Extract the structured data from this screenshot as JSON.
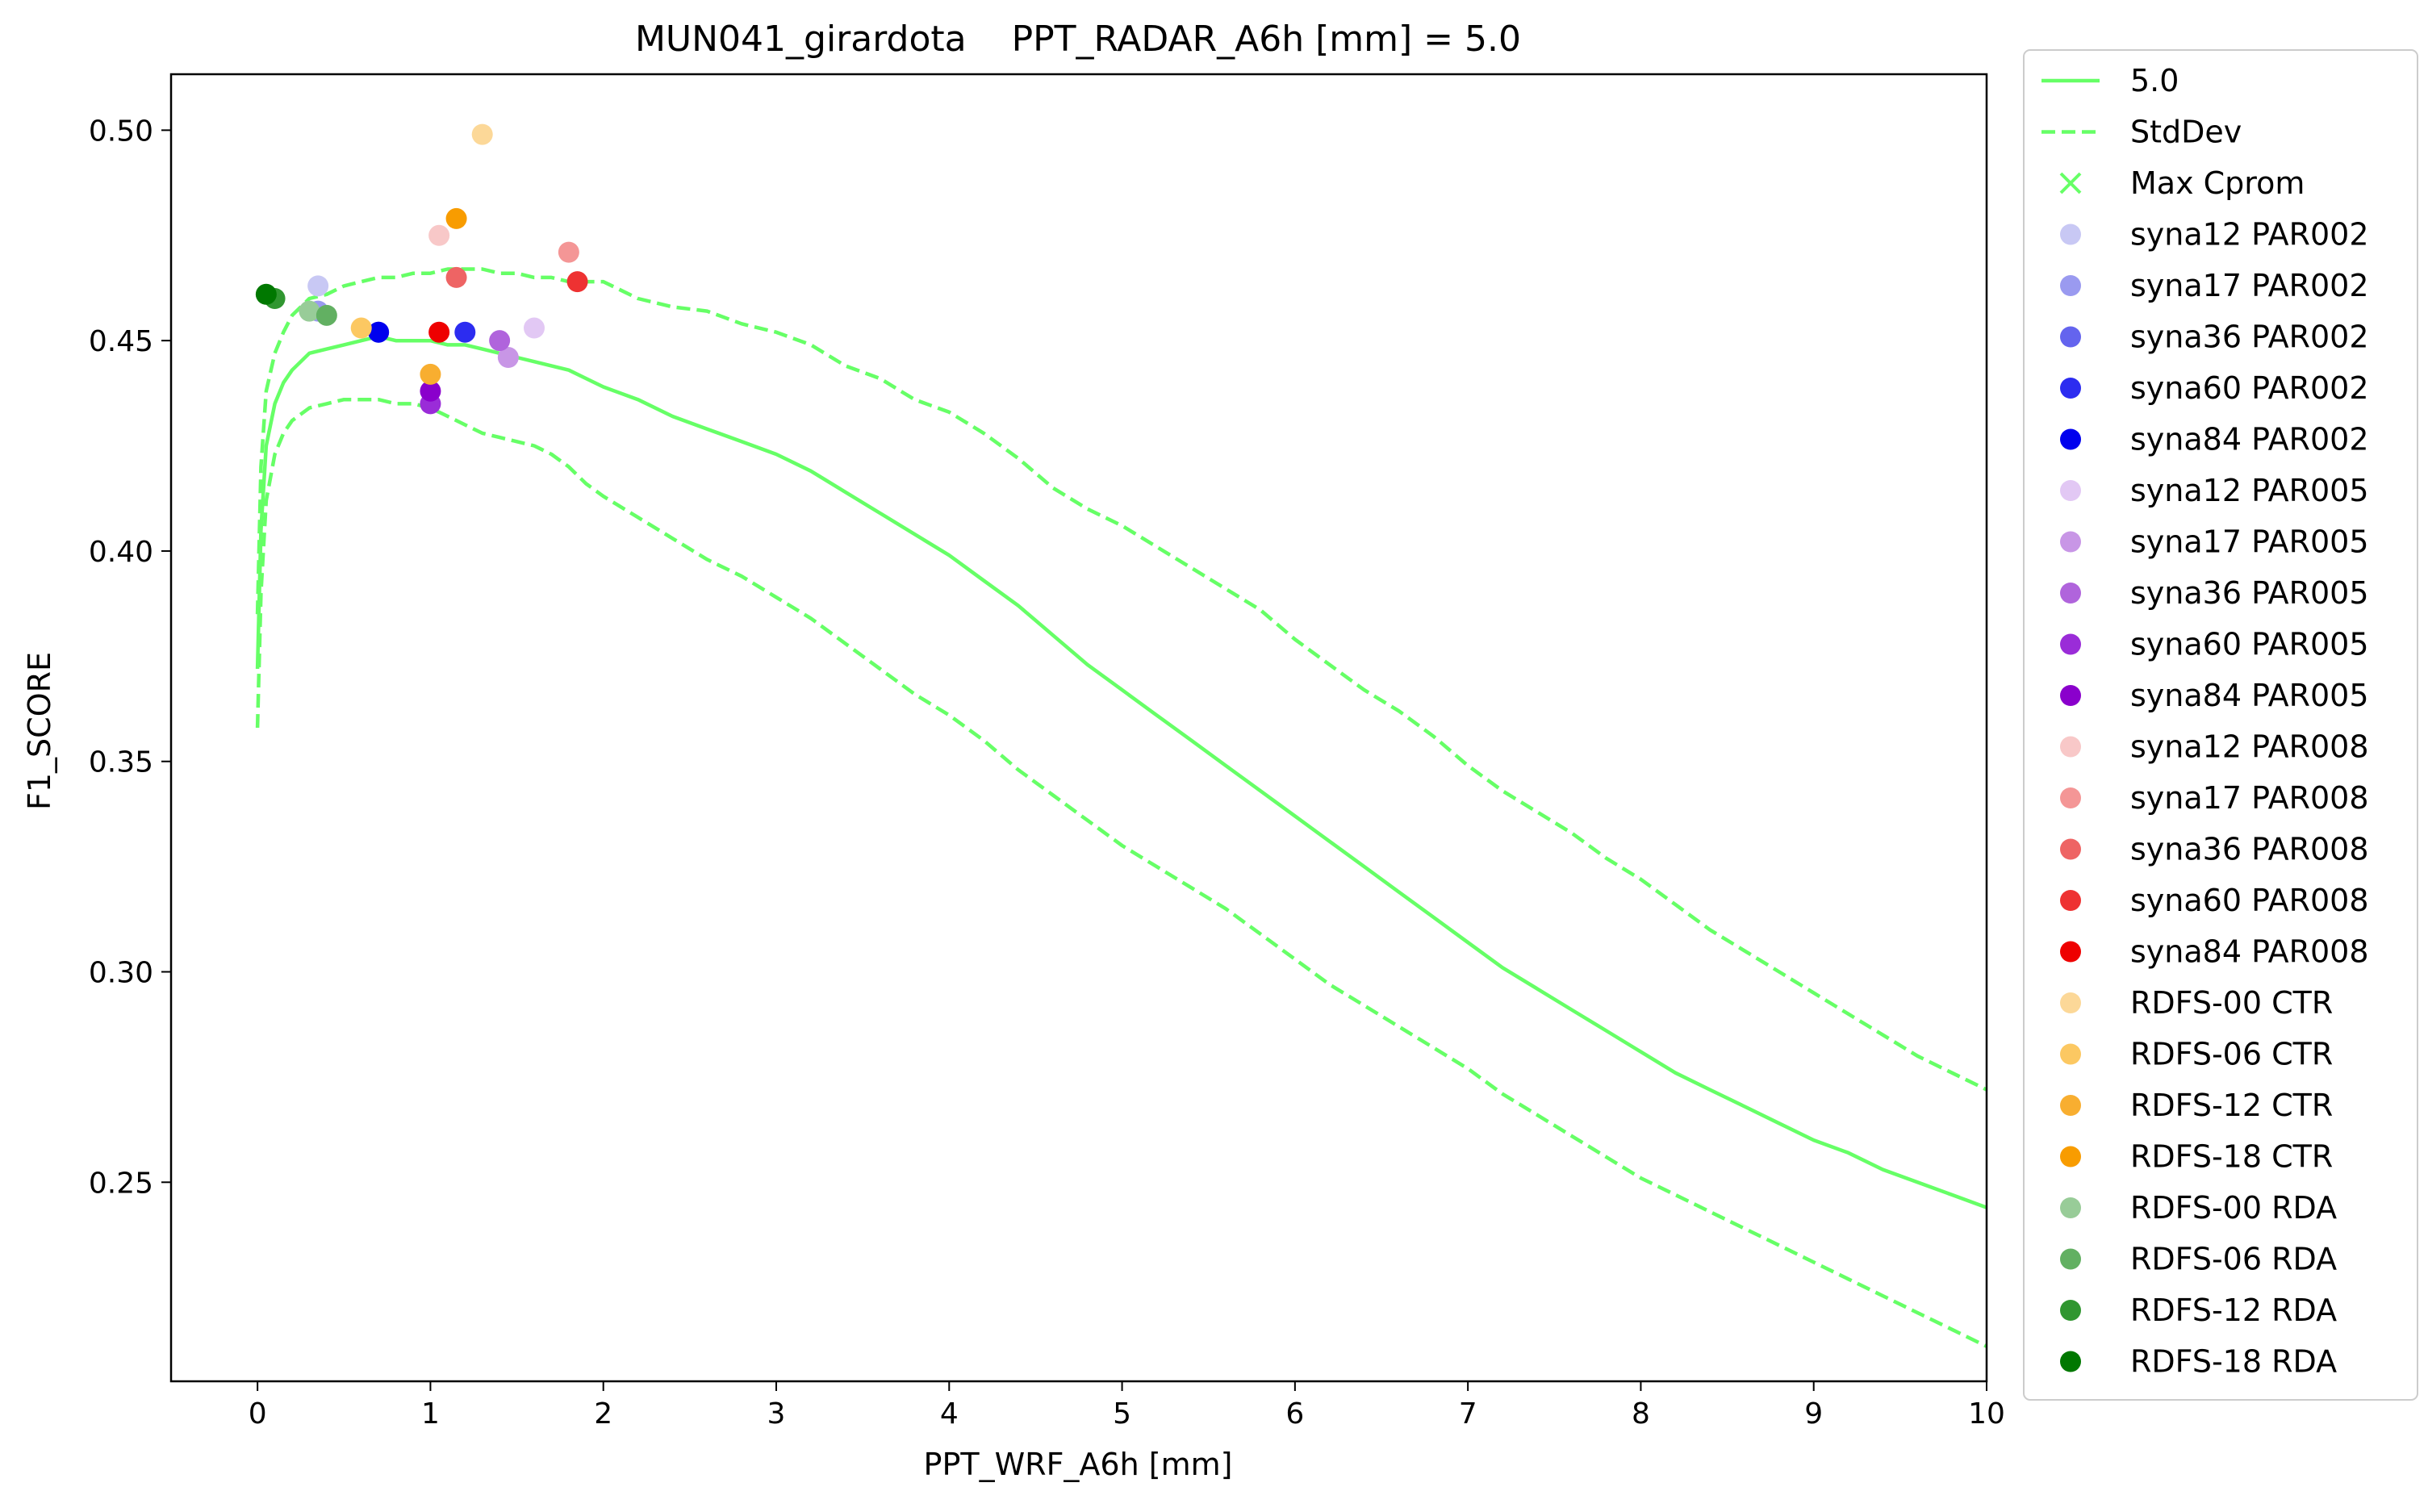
{
  "chart_data": {
    "type": "line",
    "title": "MUN041_girardota    PPT_RADAR_A6h [mm] = 5.0",
    "xlabel": "PPT_WRF_A6h [mm]",
    "ylabel": "F1_SCORE",
    "xlim": [
      -0.5,
      10
    ],
    "ylim": [
      0.2027,
      0.5133
    ],
    "xticks": [
      0,
      1,
      2,
      3,
      4,
      5,
      6,
      7,
      8,
      9,
      10
    ],
    "yticks": [
      0.25,
      0.3,
      0.35,
      0.4,
      0.45,
      0.5
    ],
    "xtick_labels": [
      "0",
      "1",
      "2",
      "3",
      "4",
      "5",
      "6",
      "7",
      "8",
      "9",
      "10"
    ],
    "ytick_labels": [
      "0.25",
      "0.30",
      "0.35",
      "0.40",
      "0.45",
      "0.50"
    ],
    "grid": false,
    "legend_position": "outside-right",
    "lines": [
      {
        "name": "5.0",
        "color": "#66ff66",
        "style": "solid",
        "x": [
          0,
          0.02,
          0.05,
          0.1,
          0.15,
          0.2,
          0.3,
          0.4,
          0.5,
          0.6,
          0.7,
          0.8,
          0.9,
          1.0,
          1.1,
          1.2,
          1.3,
          1.4,
          1.5,
          1.6,
          1.7,
          1.8,
          1.9,
          2.0,
          2.2,
          2.4,
          2.6,
          2.8,
          3.0,
          3.2,
          3.4,
          3.6,
          3.8,
          4.0,
          4.2,
          4.4,
          4.6,
          4.8,
          5.0,
          5.2,
          5.4,
          5.6,
          5.8,
          6.0,
          6.2,
          6.4,
          6.6,
          6.8,
          7.0,
          7.2,
          7.4,
          7.6,
          7.8,
          8.0,
          8.2,
          8.4,
          8.6,
          8.8,
          9.0,
          9.2,
          9.4,
          9.6,
          9.8,
          10.0
        ],
        "y": [
          0.372,
          0.405,
          0.425,
          0.435,
          0.44,
          0.443,
          0.447,
          0.448,
          0.449,
          0.45,
          0.451,
          0.45,
          0.45,
          0.45,
          0.449,
          0.449,
          0.448,
          0.447,
          0.446,
          0.445,
          0.444,
          0.443,
          0.441,
          0.439,
          0.436,
          0.432,
          0.429,
          0.426,
          0.423,
          0.419,
          0.414,
          0.409,
          0.404,
          0.399,
          0.393,
          0.387,
          0.38,
          0.373,
          0.367,
          0.361,
          0.355,
          0.349,
          0.343,
          0.337,
          0.331,
          0.325,
          0.319,
          0.313,
          0.307,
          0.301,
          0.296,
          0.291,
          0.286,
          0.281,
          0.276,
          0.272,
          0.268,
          0.264,
          0.26,
          0.257,
          0.253,
          0.25,
          0.247,
          0.244
        ]
      },
      {
        "name": "StdDev",
        "color": "#66ff66",
        "style": "dashed",
        "x": [
          0,
          0.02,
          0.05,
          0.1,
          0.15,
          0.2,
          0.3,
          0.4,
          0.5,
          0.6,
          0.7,
          0.8,
          0.9,
          1.0,
          1.1,
          1.2,
          1.3,
          1.4,
          1.5,
          1.6,
          1.7,
          1.8,
          1.9,
          2.0,
          2.2,
          2.4,
          2.6,
          2.8,
          3.0,
          3.2,
          3.4,
          3.6,
          3.8,
          4.0,
          4.2,
          4.4,
          4.6,
          4.8,
          5.0,
          5.2,
          5.4,
          5.6,
          5.8,
          6.0,
          6.2,
          6.4,
          6.6,
          6.8,
          7.0,
          7.2,
          7.4,
          7.6,
          7.8,
          8.0,
          8.2,
          8.4,
          8.6,
          8.8,
          9.0,
          9.2,
          9.4,
          9.6,
          9.8,
          10.0
        ],
        "y": [
          0.385,
          0.42,
          0.438,
          0.447,
          0.452,
          0.456,
          0.46,
          0.461,
          0.463,
          0.464,
          0.465,
          0.465,
          0.466,
          0.466,
          0.467,
          0.467,
          0.467,
          0.466,
          0.466,
          0.465,
          0.465,
          0.464,
          0.464,
          0.464,
          0.46,
          0.458,
          0.457,
          0.454,
          0.452,
          0.449,
          0.444,
          0.441,
          0.436,
          0.433,
          0.428,
          0.422,
          0.415,
          0.41,
          0.406,
          0.401,
          0.396,
          0.391,
          0.386,
          0.379,
          0.373,
          0.367,
          0.362,
          0.356,
          0.349,
          0.343,
          0.338,
          0.333,
          0.327,
          0.322,
          0.316,
          0.31,
          0.305,
          0.3,
          0.295,
          0.29,
          0.285,
          0.28,
          0.276,
          0.272
        ]
      },
      {
        "name": "",
        "color": "#66ff66",
        "style": "dashed",
        "x": [
          0,
          0.02,
          0.05,
          0.1,
          0.15,
          0.2,
          0.3,
          0.4,
          0.5,
          0.6,
          0.7,
          0.8,
          0.9,
          1.0,
          1.1,
          1.2,
          1.3,
          1.4,
          1.5,
          1.6,
          1.7,
          1.8,
          1.9,
          2.0,
          2.2,
          2.4,
          2.6,
          2.8,
          3.0,
          3.2,
          3.4,
          3.6,
          3.8,
          4.0,
          4.2,
          4.4,
          4.6,
          4.8,
          5.0,
          5.2,
          5.4,
          5.6,
          5.8,
          6.0,
          6.2,
          6.4,
          6.6,
          6.8,
          7.0,
          7.2,
          7.4,
          7.6,
          7.8,
          8.0,
          8.2,
          8.4,
          8.6,
          8.8,
          9.0,
          9.2,
          9.4,
          9.6,
          9.8,
          10.0
        ],
        "y": [
          0.358,
          0.39,
          0.412,
          0.423,
          0.428,
          0.431,
          0.434,
          0.435,
          0.436,
          0.436,
          0.436,
          0.435,
          0.435,
          0.434,
          0.432,
          0.43,
          0.428,
          0.427,
          0.426,
          0.425,
          0.423,
          0.42,
          0.416,
          0.413,
          0.408,
          0.403,
          0.398,
          0.394,
          0.389,
          0.384,
          0.378,
          0.372,
          0.366,
          0.361,
          0.355,
          0.348,
          0.342,
          0.336,
          0.33,
          0.325,
          0.32,
          0.315,
          0.309,
          0.303,
          0.297,
          0.292,
          0.287,
          0.282,
          0.277,
          0.271,
          0.266,
          0.261,
          0.256,
          0.251,
          0.247,
          0.243,
          0.239,
          0.235,
          0.231,
          0.227,
          0.223,
          0.219,
          0.215,
          0.211
        ]
      }
    ],
    "points": [
      {
        "name": "syna12 PAR002",
        "color": "#c8c8f4",
        "x": 0.35,
        "y": 0.463
      },
      {
        "name": "syna17 PAR002",
        "color": "#9a9af0",
        "x": 0.35,
        "y": 0.457
      },
      {
        "name": "syna36 PAR002",
        "color": "#6464ee",
        "x": 0.7,
        "y": 0.452
      },
      {
        "name": "syna60 PAR002",
        "color": "#2c2cf0",
        "x": 1.2,
        "y": 0.452
      },
      {
        "name": "syna84 PAR002",
        "color": "#0000ee",
        "x": 0.7,
        "y": 0.452
      },
      {
        "name": "syna12 PAR005",
        "color": "#e2c8f4",
        "x": 1.6,
        "y": 0.453
      },
      {
        "name": "syna17 PAR005",
        "color": "#c896e6",
        "x": 1.45,
        "y": 0.446
      },
      {
        "name": "syna36 PAR005",
        "color": "#b064dc",
        "x": 1.4,
        "y": 0.45
      },
      {
        "name": "syna60 PAR005",
        "color": "#9a2cd8",
        "x": 1.0,
        "y": 0.435
      },
      {
        "name": "syna84 PAR005",
        "color": "#8a00cc",
        "x": 1.0,
        "y": 0.438
      },
      {
        "name": "syna12 PAR008",
        "color": "#f8c8c8",
        "x": 1.05,
        "y": 0.475
      },
      {
        "name": "syna17 PAR008",
        "color": "#f49696",
        "x": 1.8,
        "y": 0.471
      },
      {
        "name": "syna36 PAR008",
        "color": "#ee6464",
        "x": 1.15,
        "y": 0.465
      },
      {
        "name": "syna60 PAR008",
        "color": "#ee3232",
        "x": 1.85,
        "y": 0.464
      },
      {
        "name": "syna84 PAR008",
        "color": "#ee0000",
        "x": 1.05,
        "y": 0.452
      },
      {
        "name": "RDFS-00 CTR",
        "color": "#fcd898",
        "x": 1.3,
        "y": 0.499
      },
      {
        "name": "RDFS-06 CTR",
        "color": "#fcc862",
        "x": 0.6,
        "y": 0.453
      },
      {
        "name": "RDFS-12 CTR",
        "color": "#f8ae30",
        "x": 1.0,
        "y": 0.442
      },
      {
        "name": "RDFS-18 CTR",
        "color": "#f89c00",
        "x": 1.15,
        "y": 0.479
      },
      {
        "name": "RDFS-00 RDA",
        "color": "#98cc98",
        "x": 0.3,
        "y": 0.457
      },
      {
        "name": "RDFS-06 RDA",
        "color": "#62b062",
        "x": 0.4,
        "y": 0.456
      },
      {
        "name": "RDFS-12 RDA",
        "color": "#309630",
        "x": 0.1,
        "y": 0.46
      },
      {
        "name": "RDFS-18 RDA",
        "color": "#007800",
        "x": 0.05,
        "y": 0.461
      }
    ],
    "max_cprom": {
      "name": "Max Cprom",
      "color": "#66ff66",
      "marker": "x"
    },
    "legend": [
      {
        "label": "5.0",
        "kind": "line-solid",
        "color": "#66ff66"
      },
      {
        "label": "StdDev",
        "kind": "line-dashed",
        "color": "#66ff66"
      },
      {
        "label": "Max Cprom",
        "kind": "x",
        "color": "#66ff66"
      },
      {
        "label": "syna12 PAR002",
        "kind": "dot",
        "color": "#c8c8f4"
      },
      {
        "label": "syna17 PAR002",
        "kind": "dot",
        "color": "#9a9af0"
      },
      {
        "label": "syna36 PAR002",
        "kind": "dot",
        "color": "#6464ee"
      },
      {
        "label": "syna60 PAR002",
        "kind": "dot",
        "color": "#2c2cf0"
      },
      {
        "label": "syna84 PAR002",
        "kind": "dot",
        "color": "#0000ee"
      },
      {
        "label": "syna12 PAR005",
        "kind": "dot",
        "color": "#e2c8f4"
      },
      {
        "label": "syna17 PAR005",
        "kind": "dot",
        "color": "#c896e6"
      },
      {
        "label": "syna36 PAR005",
        "kind": "dot",
        "color": "#b064dc"
      },
      {
        "label": "syna60 PAR005",
        "kind": "dot",
        "color": "#9a2cd8"
      },
      {
        "label": "syna84 PAR005",
        "kind": "dot",
        "color": "#8a00cc"
      },
      {
        "label": "syna12 PAR008",
        "kind": "dot",
        "color": "#f8c8c8"
      },
      {
        "label": "syna17 PAR008",
        "kind": "dot",
        "color": "#f49696"
      },
      {
        "label": "syna36 PAR008",
        "kind": "dot",
        "color": "#ee6464"
      },
      {
        "label": "syna60 PAR008",
        "kind": "dot",
        "color": "#ee3232"
      },
      {
        "label": "syna84 PAR008",
        "kind": "dot",
        "color": "#ee0000"
      },
      {
        "label": "RDFS-00 CTR",
        "kind": "dot",
        "color": "#fcd898"
      },
      {
        "label": "RDFS-06 CTR",
        "kind": "dot",
        "color": "#fcc862"
      },
      {
        "label": "RDFS-12 CTR",
        "kind": "dot",
        "color": "#f8ae30"
      },
      {
        "label": "RDFS-18 CTR",
        "kind": "dot",
        "color": "#f89c00"
      },
      {
        "label": "RDFS-00 RDA",
        "kind": "dot",
        "color": "#98cc98"
      },
      {
        "label": "RDFS-06 RDA",
        "kind": "dot",
        "color": "#62b062"
      },
      {
        "label": "RDFS-12 RDA",
        "kind": "dot",
        "color": "#309630"
      },
      {
        "label": "RDFS-18 RDA",
        "kind": "dot",
        "color": "#007800"
      }
    ]
  }
}
